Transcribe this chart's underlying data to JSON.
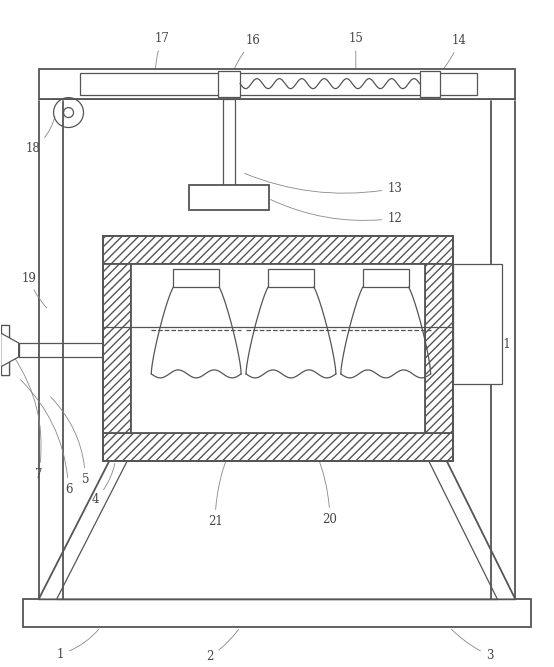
{
  "fig_width": 5.54,
  "fig_height": 6.67,
  "dpi": 100,
  "bg_color": "#ffffff",
  "line_color": "#555555",
  "label_color": "#444444"
}
